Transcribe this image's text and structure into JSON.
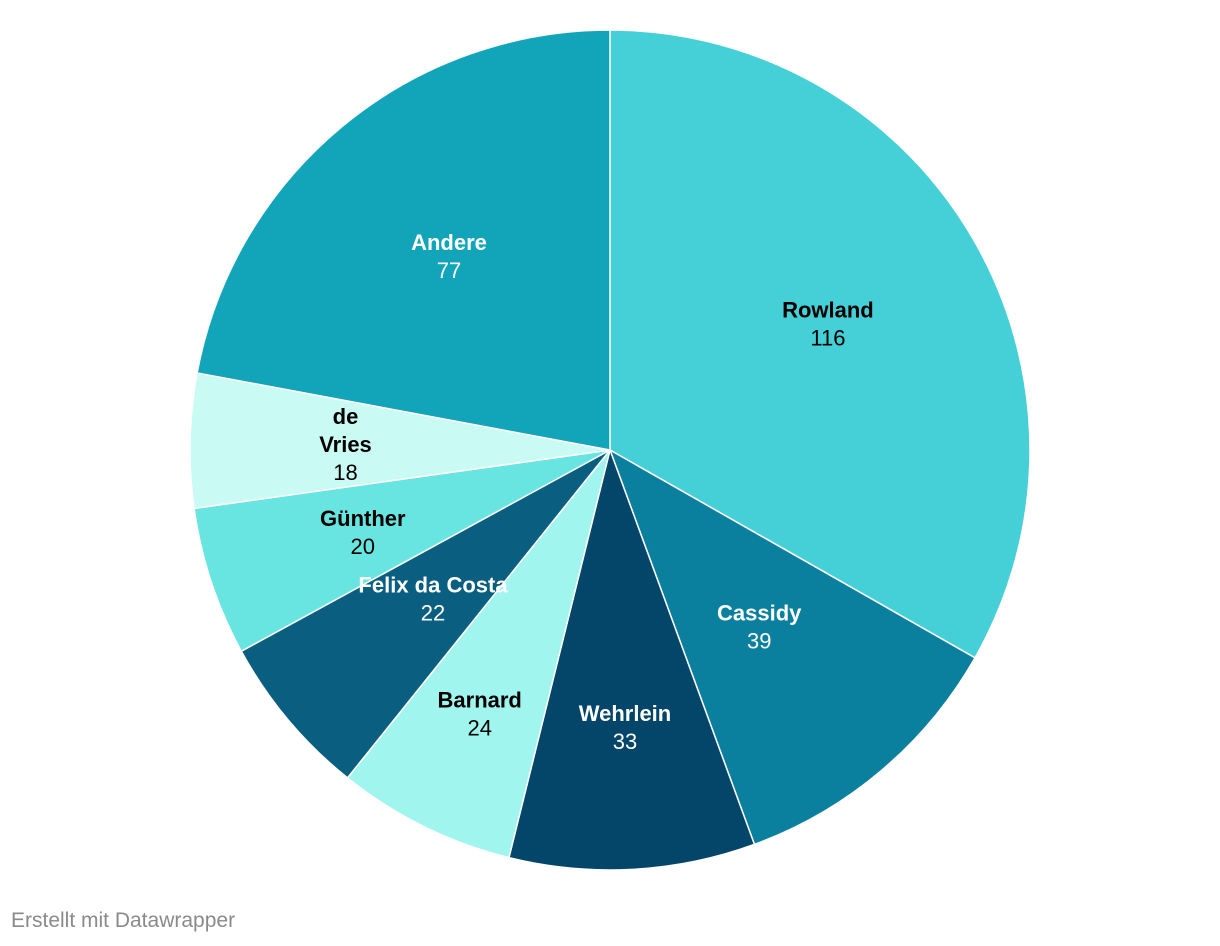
{
  "chart_data": {
    "type": "pie",
    "categories": [
      "Rowland",
      "Cassidy",
      "Wehrlein",
      "Barnard",
      "Felix da Costa",
      "Günther",
      "de Vries",
      "Andere"
    ],
    "values": [
      116,
      39,
      33,
      24,
      22,
      20,
      18,
      77
    ],
    "colors": [
      "#45d0d7",
      "#0b7f9e",
      "#04456a",
      "#a0f6ee",
      "#0a5f80",
      "#68e5e0",
      "#c9faf3",
      "#12a5b9"
    ],
    "label_colors": [
      "#000000",
      "#ffffff",
      "#ffffff",
      "#000000",
      "#ffffff",
      "#000000",
      "#000000",
      "#ffffff"
    ],
    "label_lines": [
      [
        "Rowland"
      ],
      [
        "Cassidy"
      ],
      [
        "Wehrlein"
      ],
      [
        "Barnard"
      ],
      [
        "Felix da Costa"
      ],
      [
        "Günther"
      ],
      [
        "de",
        "Vries"
      ],
      [
        "Andere"
      ]
    ],
    "start_angle": "12 o'clock",
    "direction": "clockwise"
  },
  "footer": {
    "credit": "Erstellt mit Datawrapper"
  }
}
